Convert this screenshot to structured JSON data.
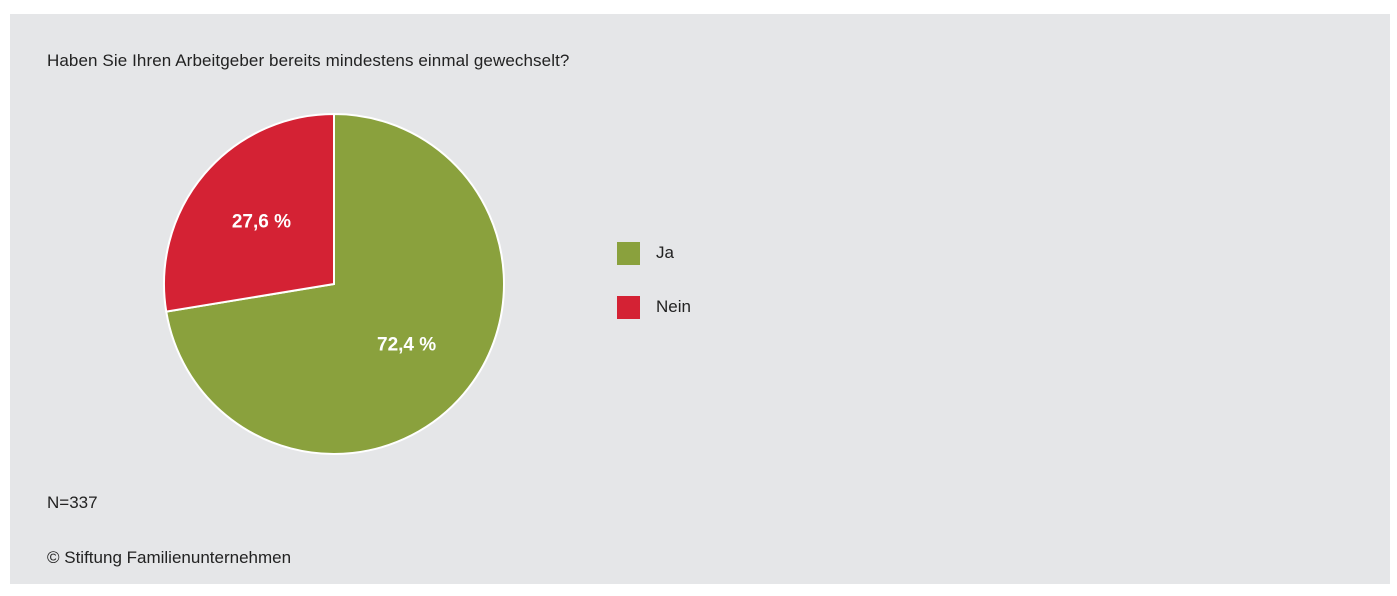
{
  "chart_data": {
    "type": "pie",
    "title": "Haben Sie Ihren Arbeitgeber bereits mindestens einmal gewechselt?",
    "categories": [
      "Ja",
      "Nein"
    ],
    "values": [
      72.4,
      27.6
    ],
    "value_labels": [
      "72,4 %",
      "27,6 %"
    ],
    "colors": [
      "#8aa13d",
      "#d42234"
    ],
    "legend_position": "right",
    "start_angle_deg": 0,
    "direction": "clockwise"
  },
  "footnote": {
    "sample": "N=337",
    "credit": "© Stiftung Familienunternehmen"
  },
  "colors": {
    "background_panel": "#e5e6e8",
    "text": "#222222",
    "slice_label": "#ffffff"
  }
}
